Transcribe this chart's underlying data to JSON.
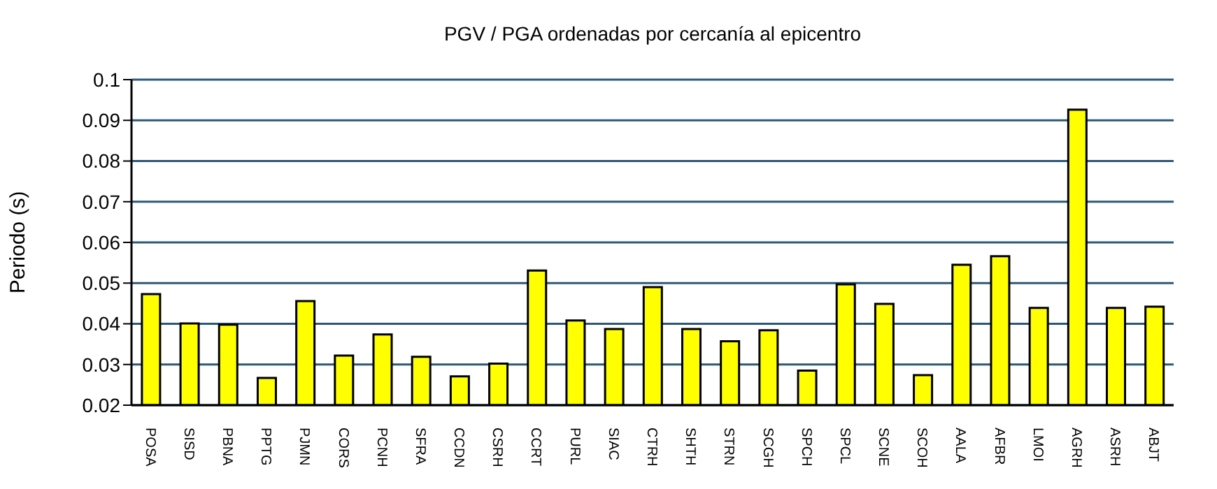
{
  "chart_data": {
    "type": "bar",
    "title": "PGV / PGA ordenadas por cercanía al epicentro",
    "ylabel": "Periodo (s)",
    "categories": [
      "POSA",
      "SISD",
      "PBNA",
      "PPTG",
      "PJMN",
      "CORS",
      "PCNH",
      "SFRA",
      "CCDN",
      "CSRH",
      "CCRT",
      "PURL",
      "SIAC",
      "CTRH",
      "SHTH",
      "STRN",
      "SCGH",
      "SPCH",
      "SPCL",
      "SCNE",
      "SCOH",
      "AALA",
      "AFBR",
      "LMOI",
      "AGRH",
      "ASRH",
      "ABJT"
    ],
    "values": [
      0.0473,
      0.0401,
      0.0398,
      0.0267,
      0.0456,
      0.0322,
      0.0374,
      0.0319,
      0.0271,
      0.0302,
      0.0531,
      0.0408,
      0.0387,
      0.049,
      0.0387,
      0.0357,
      0.0384,
      0.0285,
      0.0497,
      0.0449,
      0.0274,
      0.0545,
      0.0566,
      0.0439,
      0.0926,
      0.0439,
      0.0442
    ],
    "color": "#ffff00",
    "ylim": [
      0.02,
      0.1
    ],
    "yticks": [
      0.02,
      0.03,
      0.04,
      0.05,
      0.06,
      0.07,
      0.08,
      0.09,
      0.1
    ],
    "grid": "y",
    "legend": false
  }
}
